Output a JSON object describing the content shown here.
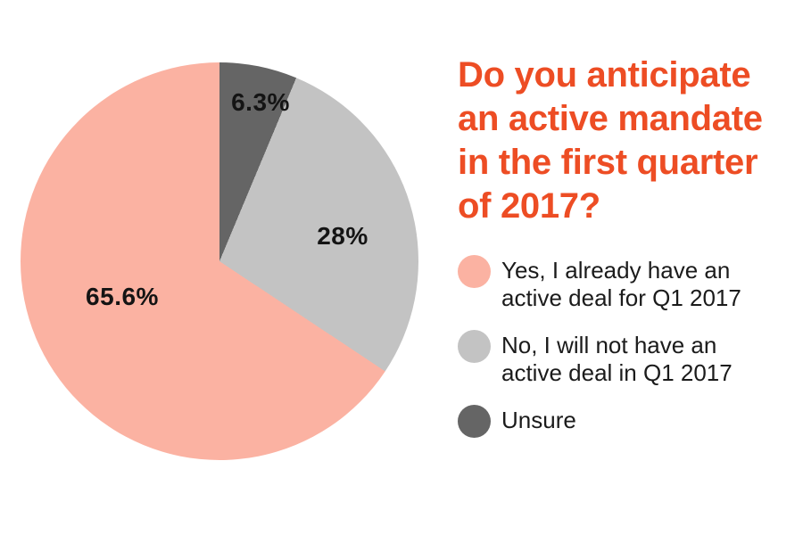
{
  "title": {
    "text": "Do you anticipate\nan active mandate\nin the first quarter\nof 2017?",
    "color": "#ed4d24"
  },
  "chart_data": {
    "type": "pie",
    "title": "Do you anticipate an active mandate in the first quarter of 2017?",
    "legend_position": "right",
    "start_angle_deg": 0,
    "direction": "clockwise-from-top, drawn in reverse legend order (Unsure first)",
    "slices": [
      {
        "label": "Yes, I already have an active deal for Q1 2017",
        "value": 65.6,
        "display": "65.6%",
        "color": "#fbb2a2"
      },
      {
        "label": "No, I will not have an active deal in Q1 2017",
        "value": 28,
        "display": "28%",
        "color": "#c3c3c3"
      },
      {
        "label": "Unsure",
        "value": 6.3,
        "display": "6.3%",
        "color": "#656565"
      }
    ],
    "value_label_color": "#141414"
  },
  "legend": {
    "text_color": "#1b1b1b",
    "items": [
      {
        "label": "Yes, I already have an\nactive deal for Q1 2017",
        "color": "#fbb2a2"
      },
      {
        "label": "No, I will not have an\nactive deal in Q1 2017",
        "color": "#c3c3c3"
      },
      {
        "label": "Unsure",
        "color": "#656565"
      }
    ]
  }
}
